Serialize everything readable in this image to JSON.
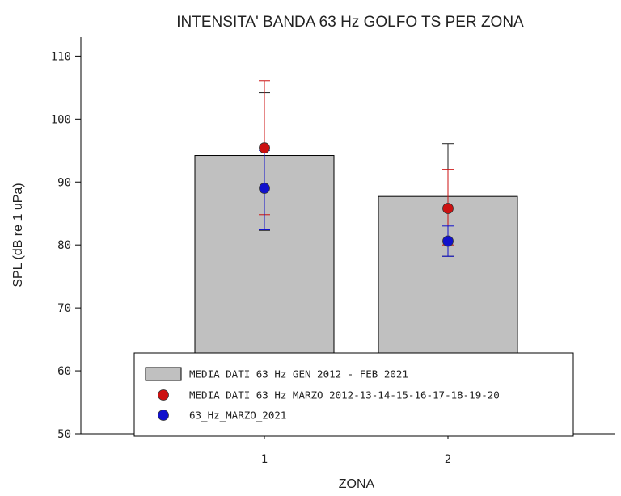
{
  "chart_data": {
    "type": "bar",
    "title": "INTENSITA' BANDA 63 Hz GOLFO TS PER ZONA",
    "xlabel": "ZONA",
    "ylabel": "SPL (dB re 1 uPa)",
    "ylim": [
      50,
      113
    ],
    "yticks": [
      50,
      60,
      70,
      80,
      90,
      100,
      110
    ],
    "categories": [
      "1",
      "2"
    ],
    "series": [
      {
        "name": "MEDIA_DATI_63_Hz_GEN_2012 - FEB_2021",
        "kind": "bar",
        "color": "#c0c0c0",
        "values": [
          94.2,
          87.7
        ],
        "err_low": [
          82.3,
          78.2
        ],
        "err_high": [
          104.2,
          96.1
        ]
      },
      {
        "name": "MEDIA_DATI_63_Hz_MARZO_2012-13-14-15-16-17-18-19-20",
        "kind": "point",
        "color": "#cc1111",
        "values": [
          95.4,
          85.8
        ],
        "err_low": [
          84.8,
          80.0
        ],
        "err_high": [
          106.1,
          92.0
        ]
      },
      {
        "name": "63_Hz_MARZO_2021",
        "kind": "point",
        "color": "#1111cc",
        "values": [
          89.0,
          80.6
        ],
        "err_low": [
          82.4,
          78.2
        ],
        "err_high": [
          95.0,
          83.0
        ]
      }
    ],
    "legend_position": "bottom-center",
    "grid": false
  }
}
